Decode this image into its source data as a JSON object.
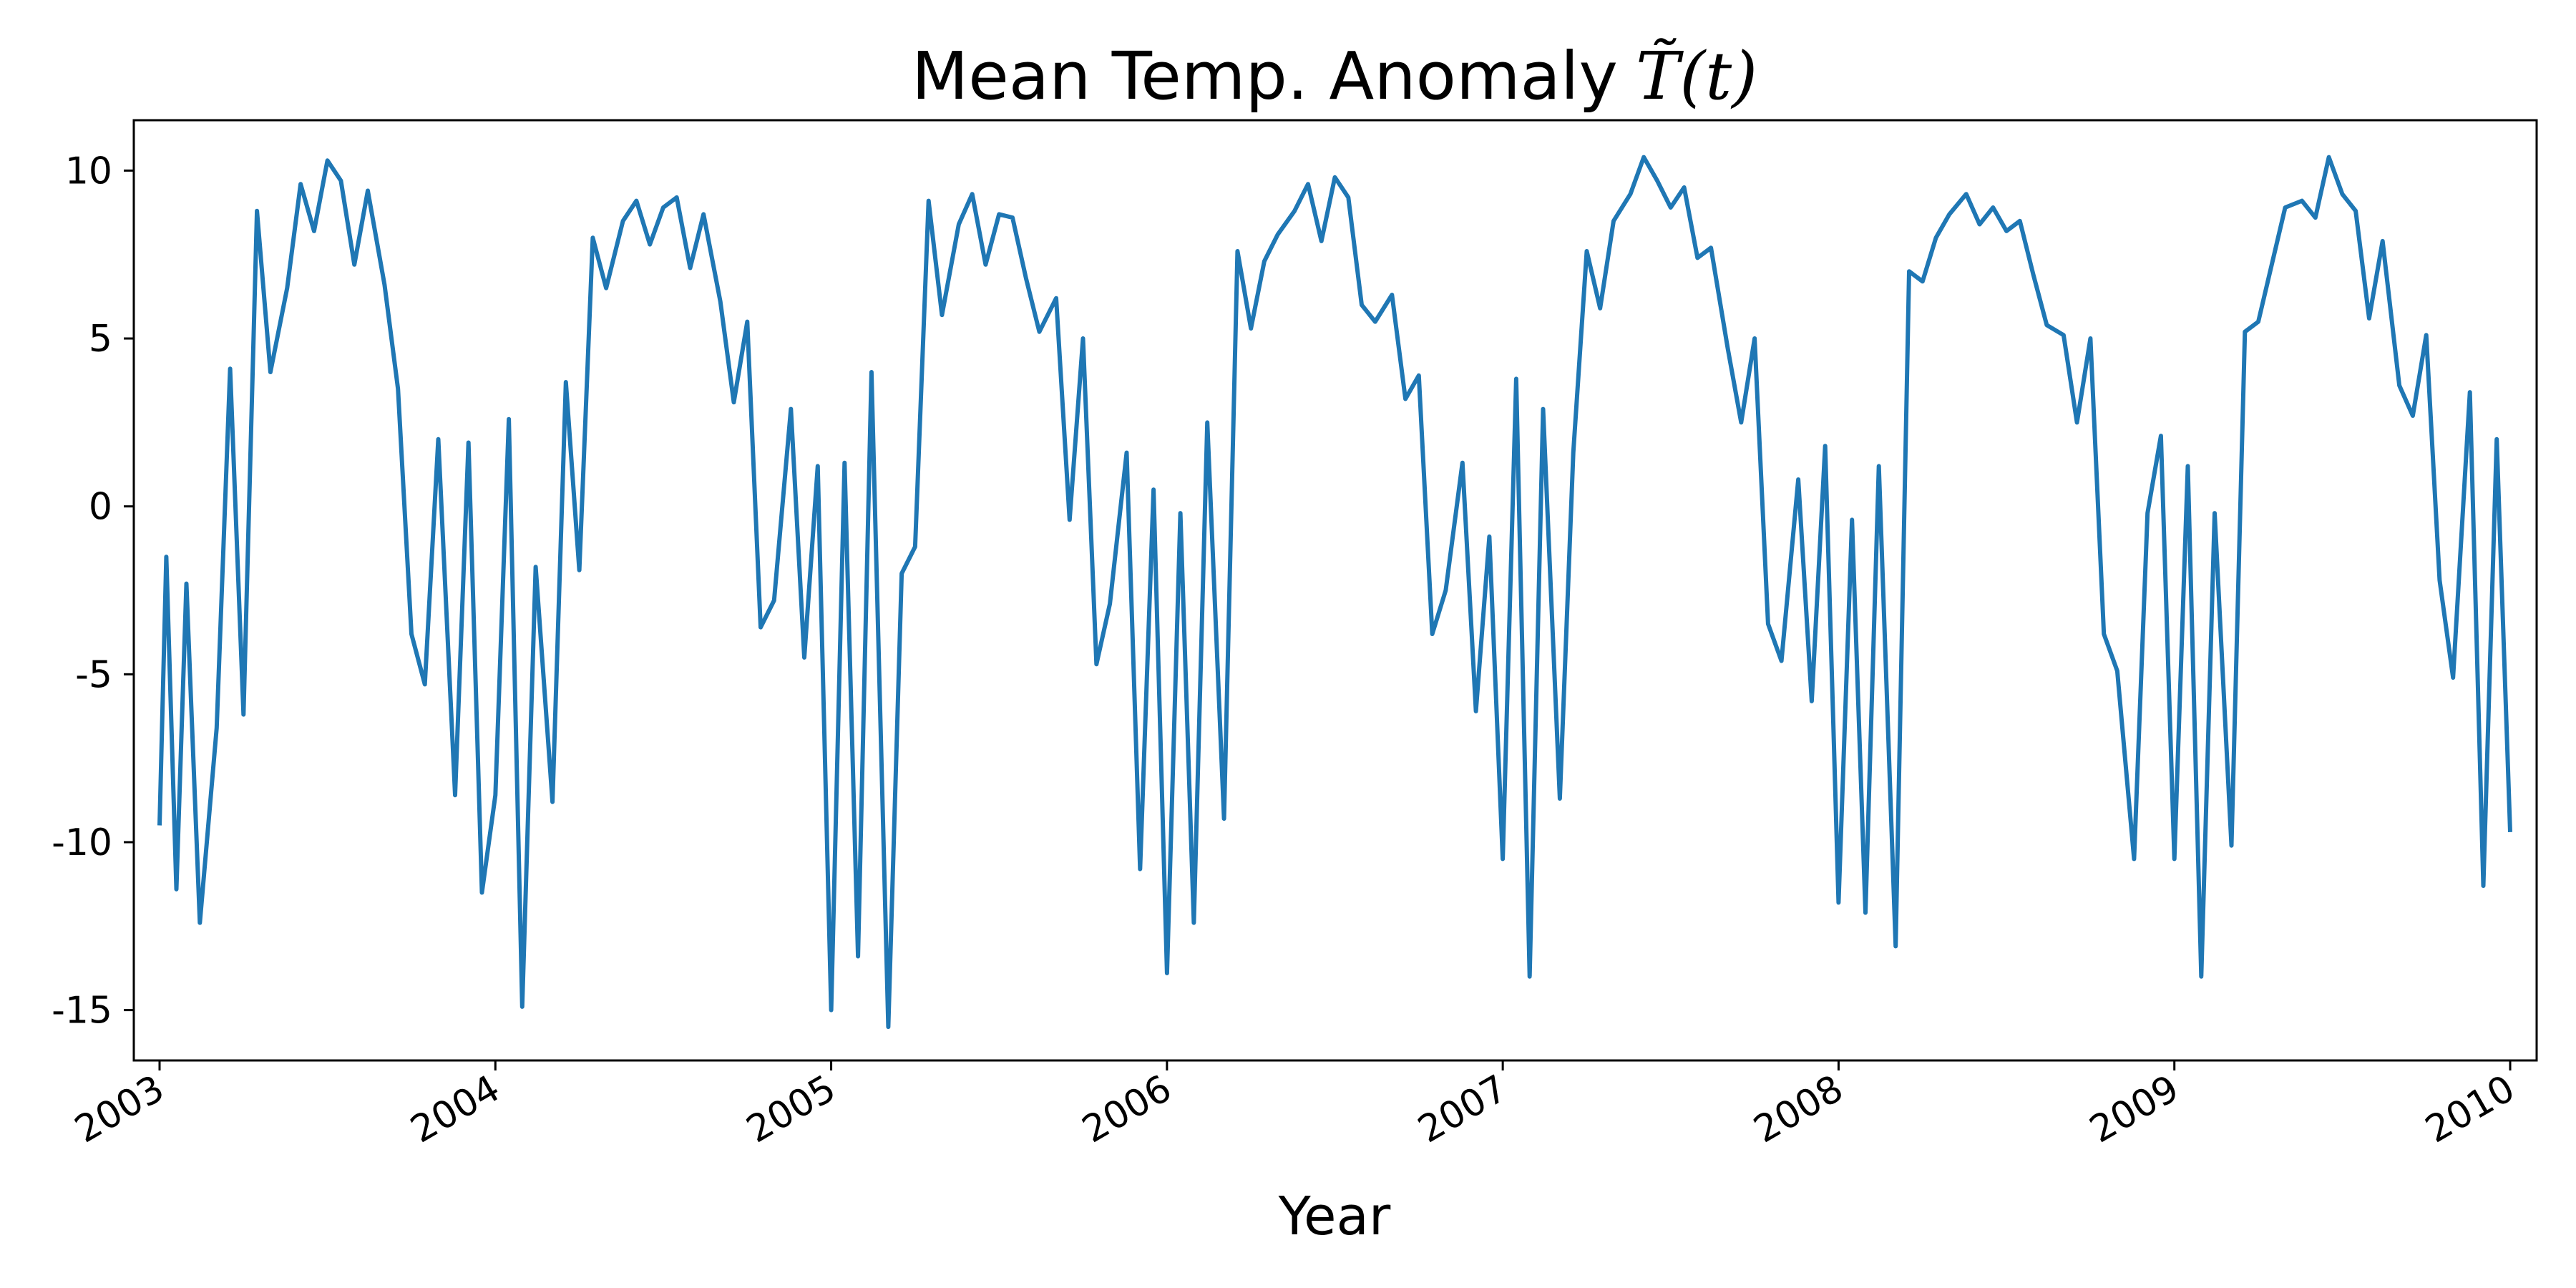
{
  "chart_data": {
    "type": "line",
    "title": {
      "text": "Mean Temp. Anomaly",
      "math": "T̃(t)"
    },
    "xlabel": "Year",
    "ylabel": "",
    "xlim": [
      2003.0,
      2010.0
    ],
    "ylim": [
      -16.5,
      11.5
    ],
    "x_ticks": [
      "2003",
      "2004",
      "2005",
      "2006",
      "2007",
      "2008",
      "2009",
      "2010"
    ],
    "y_ticks": [
      10,
      5,
      0,
      -5,
      -10,
      -15
    ],
    "y_tick_labels": [
      "10",
      "5",
      "0",
      "-5",
      "-10",
      "-15"
    ],
    "grid": false,
    "legend": "none",
    "colors": {
      "line": "#1f77b4",
      "axis": "#000000",
      "background": "#ffffff"
    },
    "series": [
      {
        "x": [
          2003.0,
          2003.02,
          2003.05,
          2003.08,
          2003.12,
          2003.17,
          2003.21,
          2003.25,
          2003.29,
          2003.33,
          2003.38,
          2003.42,
          2003.46,
          2003.5,
          2003.54,
          2003.58,
          2003.62,
          2003.67,
          2003.71,
          2003.75,
          2003.79,
          2003.83,
          2003.88,
          2003.92,
          2003.96,
          2004.0,
          2004.04,
          2004.08,
          2004.12,
          2004.17,
          2004.21,
          2004.25,
          2004.29,
          2004.33,
          2004.38,
          2004.42,
          2004.46,
          2004.5,
          2004.54,
          2004.58,
          2004.62,
          2004.67,
          2004.71,
          2004.75,
          2004.79,
          2004.83,
          2004.88,
          2004.92,
          2004.96,
          2005.0,
          2005.04,
          2005.08,
          2005.12,
          2005.17,
          2005.21,
          2005.25,
          2005.29,
          2005.33,
          2005.38,
          2005.42,
          2005.46,
          2005.5,
          2005.54,
          2005.58,
          2005.62,
          2005.67,
          2005.71,
          2005.75,
          2005.79,
          2005.83,
          2005.88,
          2005.92,
          2005.96,
          2006.0,
          2006.04,
          2006.08,
          2006.12,
          2006.17,
          2006.21,
          2006.25,
          2006.29,
          2006.33,
          2006.38,
          2006.42,
          2006.46,
          2006.5,
          2006.54,
          2006.58,
          2006.62,
          2006.67,
          2006.71,
          2006.75,
          2006.79,
          2006.83,
          2006.88,
          2006.92,
          2006.96,
          2007.0,
          2007.04,
          2007.08,
          2007.12,
          2007.17,
          2007.21,
          2007.25,
          2007.29,
          2007.33,
          2007.38,
          2007.42,
          2007.46,
          2007.5,
          2007.54,
          2007.58,
          2007.62,
          2007.67,
          2007.71,
          2007.75,
          2007.79,
          2007.83,
          2007.88,
          2007.92,
          2007.96,
          2008.0,
          2008.04,
          2008.08,
          2008.12,
          2008.17,
          2008.21,
          2008.25,
          2008.29,
          2008.33,
          2008.38,
          2008.42,
          2008.46,
          2008.5,
          2008.54,
          2008.58,
          2008.62,
          2008.67,
          2008.71,
          2008.75,
          2008.79,
          2008.83,
          2008.88,
          2008.92,
          2008.96,
          2009.0,
          2009.04,
          2009.08,
          2009.12,
          2009.17,
          2009.21,
          2009.25,
          2009.29,
          2009.33,
          2009.38,
          2009.42,
          2009.46,
          2009.5,
          2009.54,
          2009.58,
          2009.62,
          2009.67,
          2009.71,
          2009.75,
          2009.79,
          2009.83,
          2009.88,
          2009.92,
          2009.96,
          2010.0
        ],
        "y": [
          -9.5,
          -1.5,
          -11.4,
          -2.3,
          -12.4,
          -6.6,
          4.1,
          -6.2,
          8.8,
          4.0,
          6.5,
          9.6,
          8.2,
          10.3,
          9.7,
          7.2,
          9.4,
          6.6,
          3.5,
          -3.8,
          -5.3,
          2.0,
          -8.6,
          1.9,
          -11.5,
          -8.6,
          2.6,
          -14.9,
          -1.8,
          -8.8,
          3.7,
          -1.9,
          8.0,
          6.5,
          8.5,
          9.1,
          7.8,
          8.9,
          9.2,
          7.1,
          8.7,
          6.1,
          3.1,
          5.5,
          -3.6,
          -2.8,
          2.9,
          -4.5,
          1.2,
          -15.0,
          1.3,
          -13.4,
          4.0,
          -15.5,
          -2.0,
          -1.2,
          9.1,
          5.7,
          8.4,
          9.3,
          7.2,
          8.7,
          8.6,
          6.8,
          5.2,
          6.2,
          -0.4,
          5.0,
          -4.7,
          -2.9,
          1.6,
          -10.8,
          0.5,
          -13.9,
          -0.2,
          -12.4,
          2.5,
          -9.3,
          7.6,
          5.3,
          7.3,
          8.1,
          8.8,
          9.6,
          7.9,
          9.8,
          9.2,
          6.0,
          5.5,
          6.3,
          3.2,
          3.9,
          -3.8,
          -2.5,
          1.3,
          -6.1,
          -0.9,
          -10.5,
          3.8,
          -14.0,
          2.9,
          -8.7,
          1.6,
          7.6,
          5.9,
          8.5,
          9.3,
          10.4,
          9.7,
          8.9,
          9.5,
          7.4,
          7.7,
          4.7,
          2.5,
          5.0,
          -3.5,
          -4.6,
          0.8,
          -5.8,
          1.8,
          -11.8,
          -0.4,
          -12.1,
          1.2,
          -13.1,
          7.0,
          6.7,
          8.0,
          8.7,
          9.3,
          8.4,
          8.9,
          8.2,
          8.5,
          6.9,
          5.4,
          5.1,
          2.5,
          5.0,
          -3.8,
          -4.9,
          -10.5,
          -0.2,
          2.1,
          -10.5,
          1.2,
          -14.0,
          -0.2,
          -10.1,
          5.2,
          5.5,
          7.2,
          8.9,
          9.1,
          8.6,
          10.4,
          9.3,
          8.8,
          5.6,
          7.9,
          3.6,
          2.7,
          5.1,
          -2.2,
          -5.1,
          3.4,
          -11.3,
          2.0,
          -9.7
        ]
      }
    ]
  }
}
